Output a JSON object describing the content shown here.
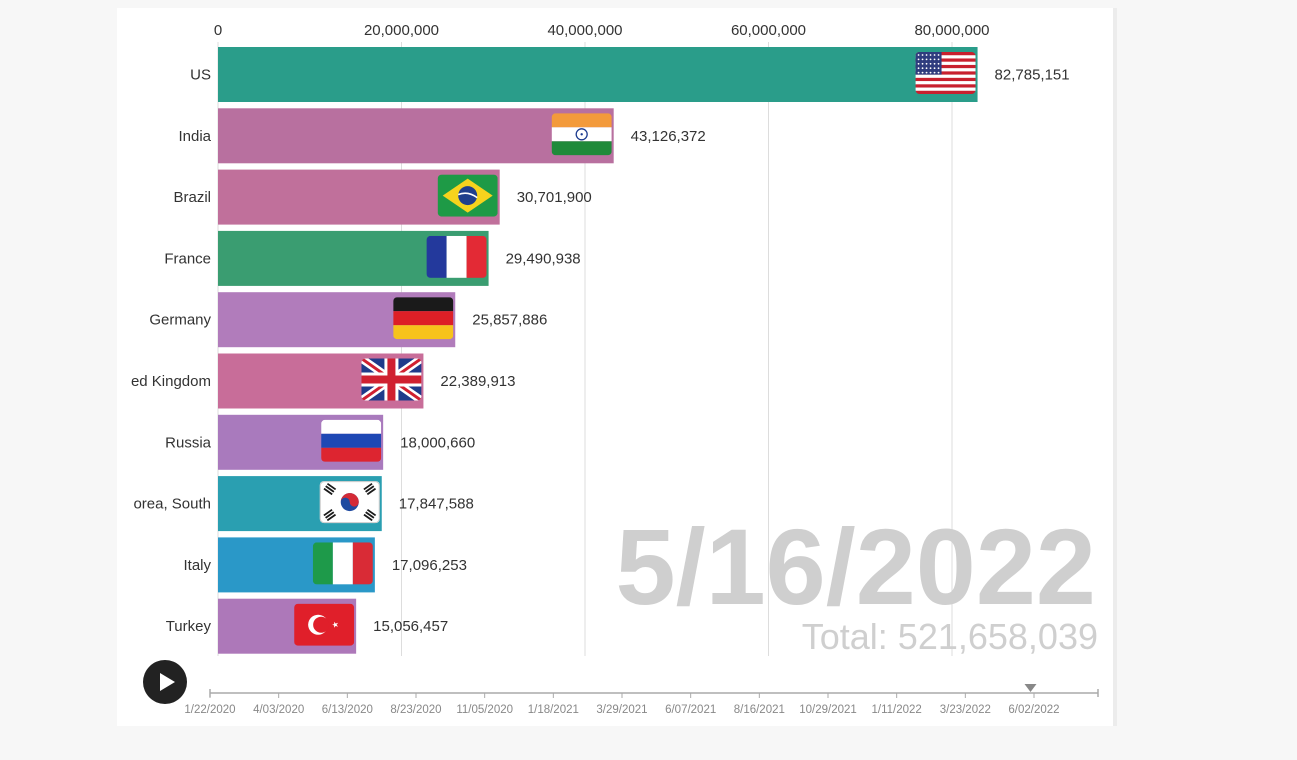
{
  "chart_data": {
    "type": "bar",
    "orientation": "horizontal",
    "date": "5/16/2022",
    "total_label": "Total: 521,658,039",
    "x_ticks": [
      0,
      20000000,
      40000000,
      60000000,
      80000000
    ],
    "x_tick_labels": [
      "0",
      "20,000,000",
      "40,000,000",
      "60,000,000",
      "80,000,000"
    ],
    "grid": true,
    "xlim": [
      0,
      88000000
    ],
    "series": [
      {
        "category": "US",
        "value": 82785151,
        "value_label": "82,785,151",
        "color": "#2a9d8a",
        "flag": "us-flag-icon"
      },
      {
        "category": "India",
        "value": 43126372,
        "value_label": "43,126,372",
        "color": "#b8709f",
        "flag": "india-flag-icon"
      },
      {
        "category": "Brazil",
        "value": 30701900,
        "value_label": "30,701,900",
        "color": "#c0709b",
        "flag": "brazil-flag-icon"
      },
      {
        "category": "France",
        "value": 29490938,
        "value_label": "29,490,938",
        "color": "#3a9d71",
        "flag": "france-flag-icon"
      },
      {
        "category": "Germany",
        "value": 25857886,
        "value_label": "25,857,886",
        "color": "#b17cbb",
        "flag": "germany-flag-icon"
      },
      {
        "category": "ed Kingdom",
        "value": 22389913,
        "value_label": "22,389,913",
        "color": "#c86d99",
        "flag": "uk-flag-icon"
      },
      {
        "category": "Russia",
        "value": 18000660,
        "value_label": "18,000,660",
        "color": "#a97abd",
        "flag": "russia-flag-icon"
      },
      {
        "category": "orea, South",
        "value": 17847588,
        "value_label": "17,847,588",
        "color": "#2a9fb1",
        "flag": "south-korea-flag-icon"
      },
      {
        "category": "Italy",
        "value": 17096253,
        "value_label": "17,096,253",
        "color": "#2a98c8",
        "flag": "italy-flag-icon"
      },
      {
        "category": "Turkey",
        "value": 15056457,
        "value_label": "15,056,457",
        "color": "#ad78b9",
        "flag": "turkey-flag-icon"
      }
    ]
  },
  "timeline": {
    "labels": [
      "1/22/2020",
      "4/03/2020",
      "6/13/2020",
      "8/23/2020",
      "11/05/2020",
      "1/18/2021",
      "3/29/2021",
      "6/07/2021",
      "8/16/2021",
      "10/29/2021",
      "1/11/2022",
      "3/23/2022",
      "6/02/2022"
    ],
    "position_fraction": 0.924
  },
  "controls": {
    "play_icon": "play-icon"
  }
}
